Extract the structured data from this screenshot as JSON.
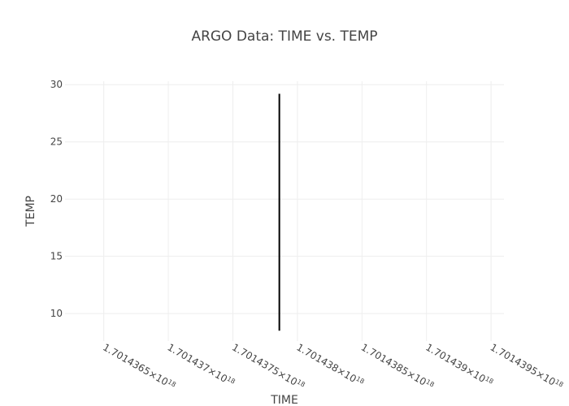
{
  "chart_data": {
    "type": "line",
    "title": "ARGO Data: TIME vs. TEMP",
    "xlabel": "TIME",
    "ylabel": "TEMP",
    "xlim": [
      1.7014362e+18,
      1.7014396e+18
    ],
    "ylim": [
      7.6,
      30.3
    ],
    "x_ticks": [
      {
        "mantissa": "1.7014365",
        "exponent": "18",
        "value": 1.7014365e+18
      },
      {
        "mantissa": "1.701437",
        "exponent": "18",
        "value": 1.701437e+18
      },
      {
        "mantissa": "1.7014375",
        "exponent": "18",
        "value": 1.7014375e+18
      },
      {
        "mantissa": "1.701438",
        "exponent": "18",
        "value": 1.701438e+18
      },
      {
        "mantissa": "1.7014385",
        "exponent": "18",
        "value": 1.7014385e+18
      },
      {
        "mantissa": "1.701439",
        "exponent": "18",
        "value": 1.701439e+18
      },
      {
        "mantissa": "1.7014395",
        "exponent": "18",
        "value": 1.7014395e+18
      }
    ],
    "y_ticks": [
      10,
      15,
      20,
      25,
      30
    ],
    "grid": true,
    "legend": "none",
    "series": [
      {
        "color": "#000000",
        "x": [
          1.70143786e+18,
          1.70143786e+18
        ],
        "y": [
          8.5,
          29.2
        ]
      }
    ]
  },
  "colors": {
    "text": "#444444",
    "grid": "#eeeeee",
    "line": "#000000"
  }
}
